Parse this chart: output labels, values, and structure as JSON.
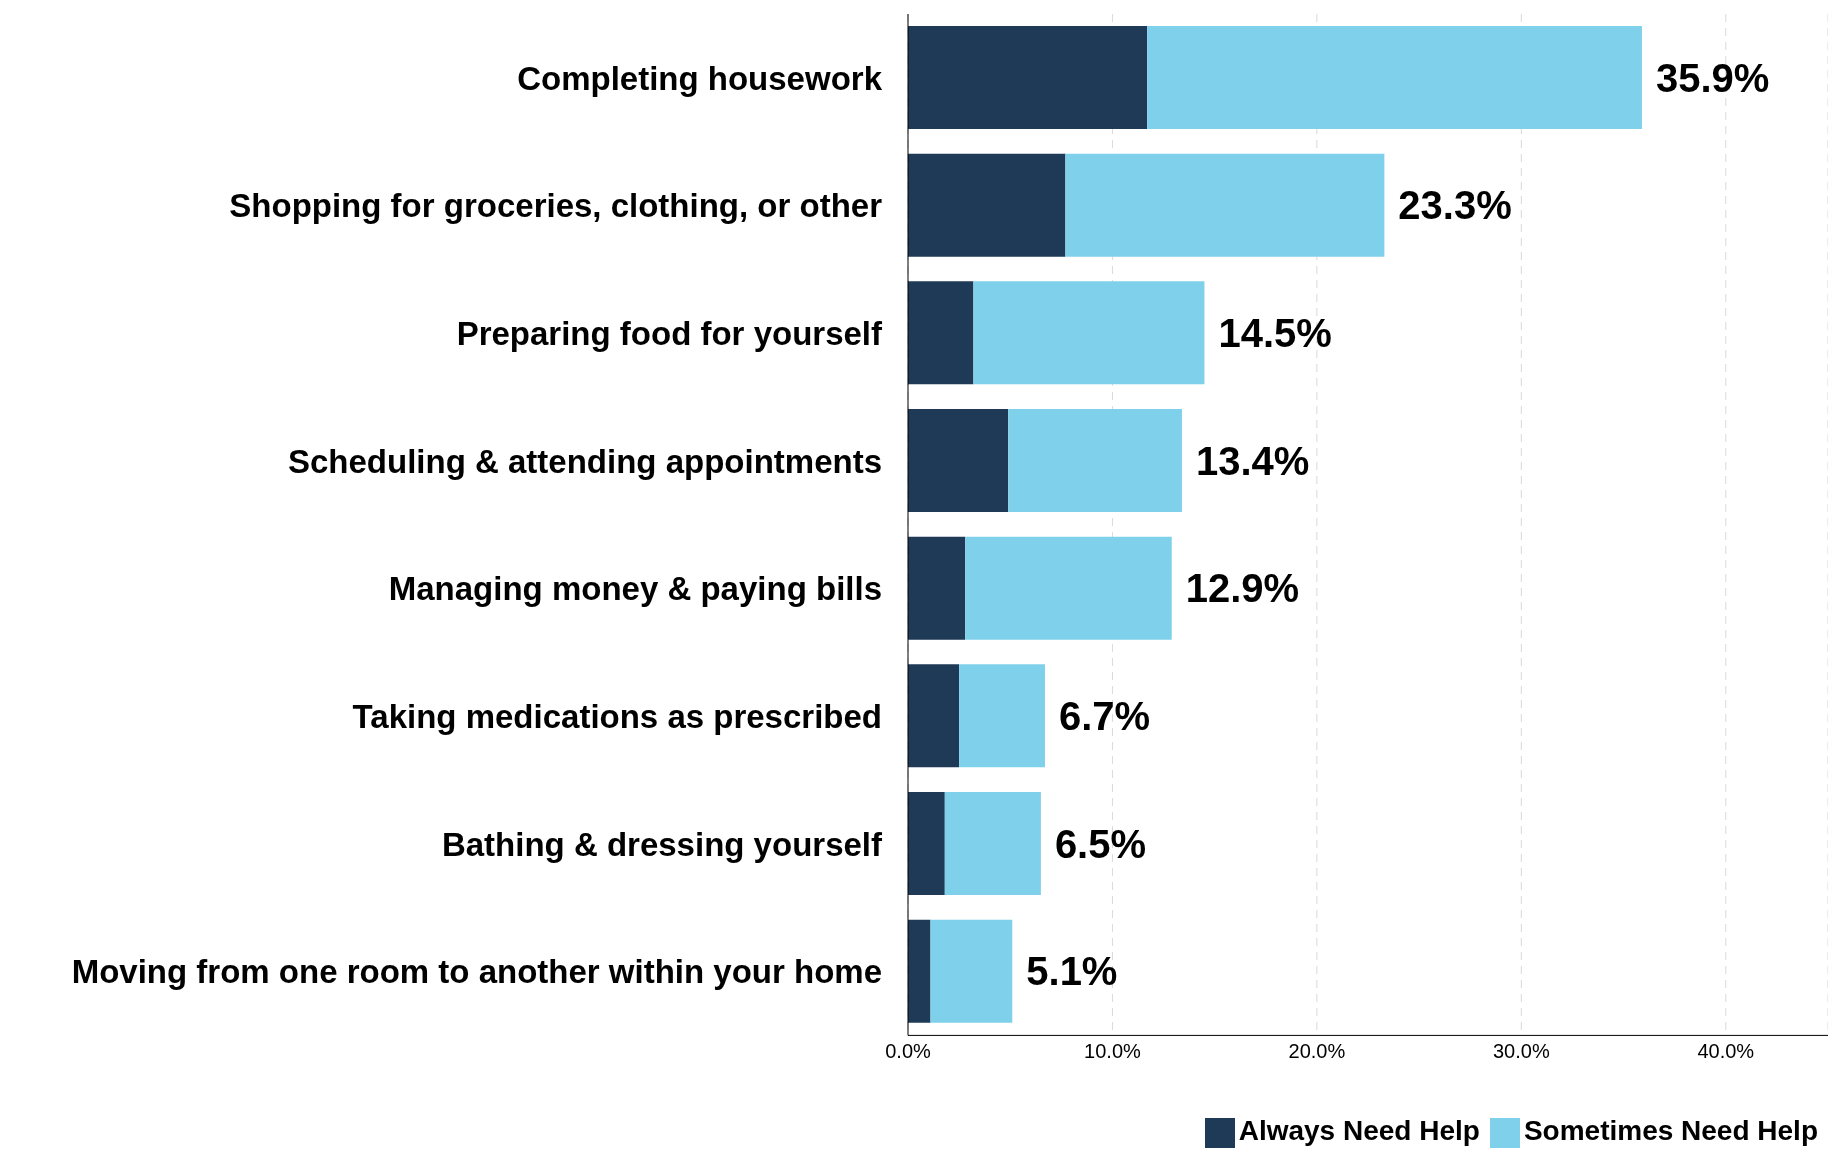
{
  "chart_data": {
    "type": "bar",
    "orientation": "horizontal",
    "stacked": true,
    "categories": [
      "Completing housework",
      "Shopping for groceries, clothing, or other",
      "Preparing food for yourself",
      "Scheduling & attending appointments",
      "Managing money & paying bills",
      "Taking medications as prescribed",
      "Bathing & dressing yourself",
      "Moving from one room to another within your home"
    ],
    "series": [
      {
        "name": "Always Need Help",
        "color": "#1f3a56",
        "values": [
          11.7,
          7.7,
          3.2,
          4.9,
          2.8,
          2.5,
          1.8,
          1.1
        ]
      },
      {
        "name": "Sometimes Need Help",
        "color": "#7fd0ea",
        "values": [
          24.2,
          15.6,
          11.3,
          8.5,
          10.1,
          4.2,
          4.7,
          4.0
        ]
      }
    ],
    "totals": [
      "35.9%",
      "23.3%",
      "14.5%",
      "13.4%",
      "12.9%",
      "6.7%",
      "6.5%",
      "5.1%"
    ],
    "xlim": [
      0,
      45
    ],
    "xticks": [
      {
        "value": 0,
        "label": "0.0%"
      },
      {
        "value": 10,
        "label": "10.0%"
      },
      {
        "value": 20,
        "label": "20.0%"
      },
      {
        "value": 30,
        "label": "30.0%"
      },
      {
        "value": 40,
        "label": "40.0%"
      }
    ],
    "grid": "x",
    "legend": "bottom right"
  }
}
